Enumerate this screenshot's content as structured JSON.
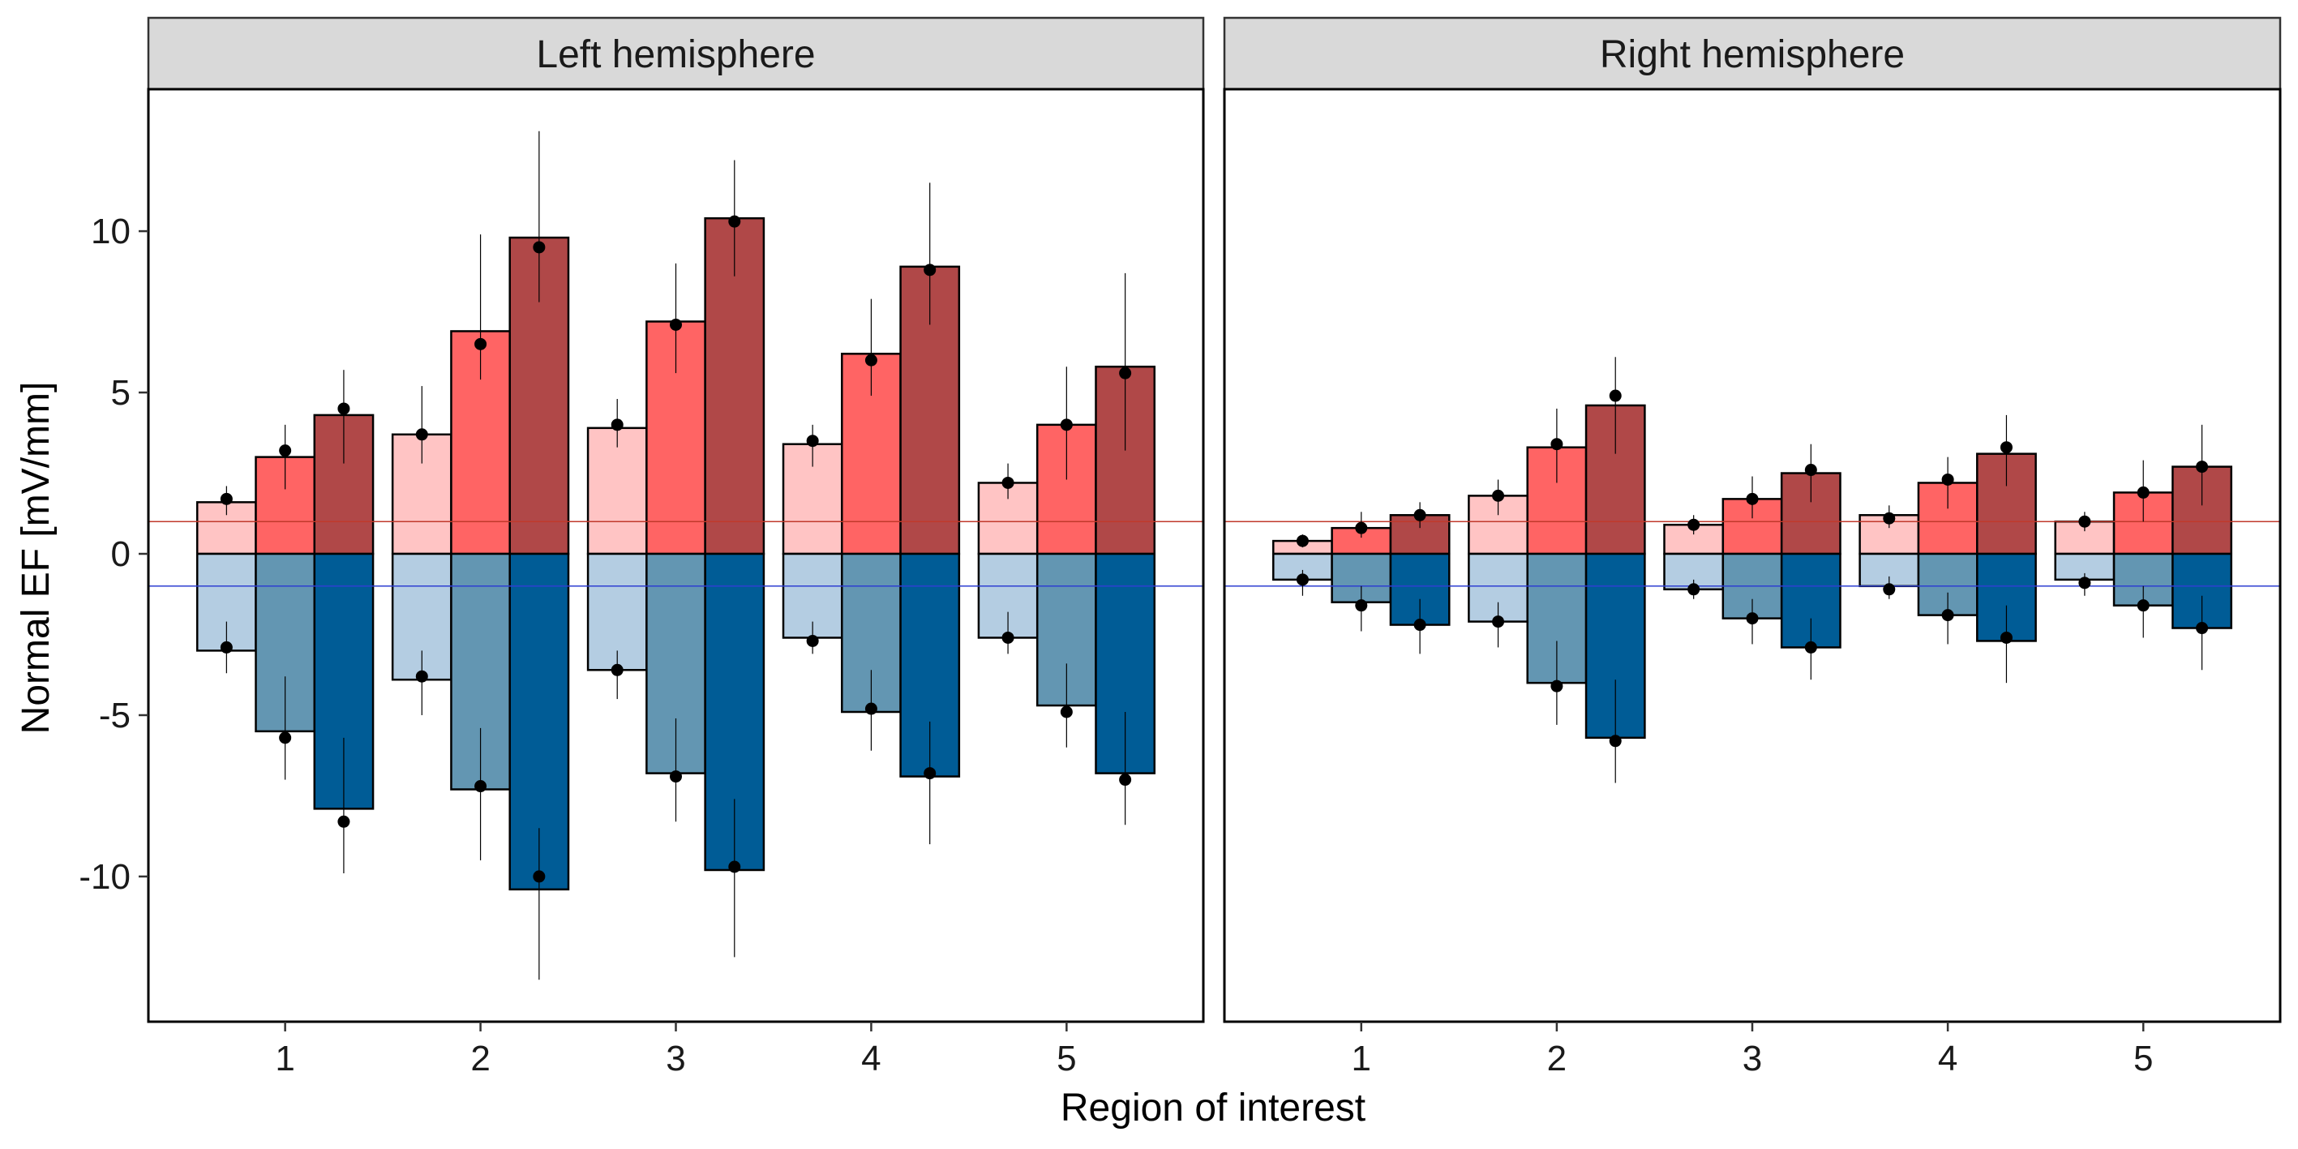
{
  "chart_data": {
    "type": "bar",
    "title": "",
    "xlabel": "Region of interest",
    "ylabel": "Normal EF [mV/mm]",
    "ylim": [
      -14.5,
      14.4
    ],
    "yticks": [
      -10,
      -5,
      0,
      5,
      10
    ],
    "categories": [
      "1",
      "2",
      "3",
      "4",
      "5"
    ],
    "grid": false,
    "legend": "none",
    "reference_lines": [
      {
        "value": 1,
        "color": "#c0392b"
      },
      {
        "value": -1,
        "color": "#2e3fd1"
      }
    ],
    "colors": {
      "positive": [
        "#ffc4c4",
        "#ff6464",
        "#b04848"
      ],
      "negative": [
        "#b4cde2",
        "#6396b2",
        "#005c96"
      ]
    },
    "panels": [
      {
        "title": "Left hemisphere",
        "positive": [
          [
            1.6,
            3.0,
            4.3
          ],
          [
            3.7,
            6.9,
            9.8
          ],
          [
            3.9,
            7.2,
            10.4
          ],
          [
            3.4,
            6.2,
            8.9
          ],
          [
            2.2,
            4.0,
            5.8
          ]
        ],
        "negative": [
          [
            -3.0,
            -5.5,
            -7.9
          ],
          [
            -3.9,
            -7.3,
            -10.4
          ],
          [
            -3.6,
            -6.8,
            -9.8
          ],
          [
            -2.6,
            -4.9,
            -6.9
          ],
          [
            -2.6,
            -4.7,
            -6.8
          ]
        ],
        "positive_points": [
          [
            1.7,
            3.2,
            4.5
          ],
          [
            3.7,
            6.5,
            9.5
          ],
          [
            4.0,
            7.1,
            10.3
          ],
          [
            3.5,
            6.0,
            8.8
          ],
          [
            2.2,
            4.0,
            5.6
          ]
        ],
        "negative_points": [
          [
            -2.9,
            -5.7,
            -8.3
          ],
          [
            -3.8,
            -7.2,
            -10.0
          ],
          [
            -3.6,
            -6.9,
            -9.7
          ],
          [
            -2.7,
            -4.8,
            -6.8
          ],
          [
            -2.6,
            -4.9,
            -7.0
          ]
        ],
        "positive_ranges": [
          [
            [
              1.2,
              2.1
            ],
            [
              2.0,
              4.0
            ],
            [
              2.8,
              5.7
            ]
          ],
          [
            [
              2.8,
              5.2
            ],
            [
              5.4,
              9.9
            ],
            [
              7.8,
              13.1
            ]
          ],
          [
            [
              3.3,
              4.8
            ],
            [
              5.6,
              9.0
            ],
            [
              8.6,
              12.2
            ]
          ],
          [
            [
              2.7,
              4.0
            ],
            [
              4.9,
              7.9
            ],
            [
              7.1,
              11.5
            ]
          ],
          [
            [
              1.7,
              2.8
            ],
            [
              2.3,
              5.8
            ],
            [
              3.2,
              8.7
            ]
          ]
        ],
        "negative_ranges": [
          [
            [
              -3.7,
              -2.1
            ],
            [
              -7.0,
              -3.8
            ],
            [
              -9.9,
              -5.7
            ]
          ],
          [
            [
              -5.0,
              -3.0
            ],
            [
              -9.5,
              -5.4
            ],
            [
              -13.2,
              -8.5
            ]
          ],
          [
            [
              -4.5,
              -3.0
            ],
            [
              -8.3,
              -5.1
            ],
            [
              -12.5,
              -7.6
            ]
          ],
          [
            [
              -3.1,
              -2.1
            ],
            [
              -6.1,
              -3.6
            ],
            [
              -9.0,
              -5.2
            ]
          ],
          [
            [
              -3.1,
              -1.8
            ],
            [
              -6.0,
              -3.4
            ],
            [
              -8.4,
              -4.9
            ]
          ]
        ]
      },
      {
        "title": "Right hemisphere",
        "positive": [
          [
            0.4,
            0.8,
            1.2
          ],
          [
            1.8,
            3.3,
            4.6
          ],
          [
            0.9,
            1.7,
            2.5
          ],
          [
            1.2,
            2.2,
            3.1
          ],
          [
            1.0,
            1.9,
            2.7
          ]
        ],
        "negative": [
          [
            -0.8,
            -1.5,
            -2.2
          ],
          [
            -2.1,
            -4.0,
            -5.7
          ],
          [
            -1.1,
            -2.0,
            -2.9
          ],
          [
            -1.0,
            -1.9,
            -2.7
          ],
          [
            -0.8,
            -1.6,
            -2.3
          ]
        ],
        "positive_points": [
          [
            0.4,
            0.8,
            1.2
          ],
          [
            1.8,
            3.4,
            4.9
          ],
          [
            0.9,
            1.7,
            2.6
          ],
          [
            1.1,
            2.3,
            3.3
          ],
          [
            1.0,
            1.9,
            2.7
          ]
        ],
        "negative_points": [
          [
            -0.8,
            -1.6,
            -2.2
          ],
          [
            -2.1,
            -4.1,
            -5.8
          ],
          [
            -1.1,
            -2.0,
            -2.9
          ],
          [
            -1.1,
            -1.9,
            -2.6
          ],
          [
            -0.9,
            -1.6,
            -2.3
          ]
        ],
        "positive_ranges": [
          [
            [
              0.2,
              0.6
            ],
            [
              0.5,
              1.3
            ],
            [
              0.8,
              1.6
            ]
          ],
          [
            [
              1.2,
              2.3
            ],
            [
              2.2,
              4.5
            ],
            [
              3.1,
              6.1
            ]
          ],
          [
            [
              0.6,
              1.2
            ],
            [
              1.1,
              2.4
            ],
            [
              1.6,
              3.4
            ]
          ],
          [
            [
              0.8,
              1.5
            ],
            [
              1.4,
              3.0
            ],
            [
              2.1,
              4.3
            ]
          ],
          [
            [
              0.7,
              1.3
            ],
            [
              1.0,
              2.9
            ],
            [
              1.5,
              4.0
            ]
          ]
        ],
        "negative_ranges": [
          [
            [
              -1.3,
              -0.5
            ],
            [
              -2.4,
              -1.0
            ],
            [
              -3.1,
              -1.4
            ]
          ],
          [
            [
              -2.9,
              -1.5
            ],
            [
              -5.3,
              -2.7
            ],
            [
              -7.1,
              -3.9
            ]
          ],
          [
            [
              -1.4,
              -0.8
            ],
            [
              -2.8,
              -1.4
            ],
            [
              -3.9,
              -2.0
            ]
          ],
          [
            [
              -1.4,
              -0.7
            ],
            [
              -2.8,
              -1.2
            ],
            [
              -4.0,
              -1.6
            ]
          ],
          [
            [
              -1.3,
              -0.6
            ],
            [
              -2.6,
              -1.0
            ],
            [
              -3.6,
              -1.3
            ]
          ]
        ]
      }
    ]
  }
}
